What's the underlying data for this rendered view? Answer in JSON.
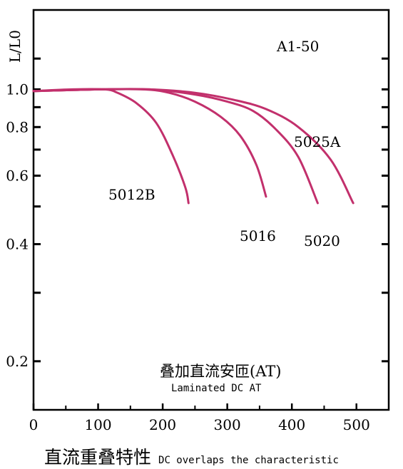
{
  "chart_data": {
    "type": "line",
    "title": "A1-50",
    "ylabel": "L/L0",
    "xlabel": "叠加直流安匝(AT)",
    "xlabel_en": "Laminated DC AT",
    "xlim": [
      0,
      550
    ],
    "ylim": [
      0.15,
      1.6
    ],
    "y_scale": "log",
    "x_ticks": [
      0,
      100,
      200,
      300,
      400,
      500
    ],
    "x_tick_labels": [
      "0",
      "100",
      "200",
      "300",
      "400",
      "500"
    ],
    "y_ticks": [
      0.2,
      0.4,
      0.6,
      0.8,
      1.0
    ],
    "y_tick_labels": [
      "0.2",
      "0.4",
      "0.6",
      "0.8",
      "1.0"
    ],
    "series": [
      {
        "name": "5012B",
        "x": [
          0,
          60,
          110,
          130,
          160,
          190,
          215,
          235,
          240
        ],
        "y": [
          0.99,
          1.0,
          1.0,
          0.98,
          0.92,
          0.82,
          0.68,
          0.56,
          0.51
        ]
      },
      {
        "name": "5016",
        "x": [
          0,
          100,
          170,
          210,
          250,
          290,
          320,
          345,
          360
        ],
        "y": [
          0.99,
          1.0,
          1.0,
          0.98,
          0.93,
          0.85,
          0.76,
          0.64,
          0.53
        ]
      },
      {
        "name": "5020",
        "x": [
          0,
          100,
          180,
          250,
          300,
          340,
          375,
          410,
          440
        ],
        "y": [
          0.99,
          1.0,
          1.0,
          0.97,
          0.93,
          0.88,
          0.79,
          0.67,
          0.51
        ]
      },
      {
        "name": "5025A",
        "x": [
          0,
          100,
          180,
          250,
          310,
          360,
          410,
          460,
          495
        ],
        "y": [
          0.99,
          1.0,
          1.0,
          0.98,
          0.94,
          0.89,
          0.8,
          0.66,
          0.51
        ]
      }
    ],
    "line_color": "#c2306c",
    "grid": false
  },
  "footer": {
    "title_cn": "直流重叠特性",
    "title_en": "DC overlaps the characteristic"
  }
}
